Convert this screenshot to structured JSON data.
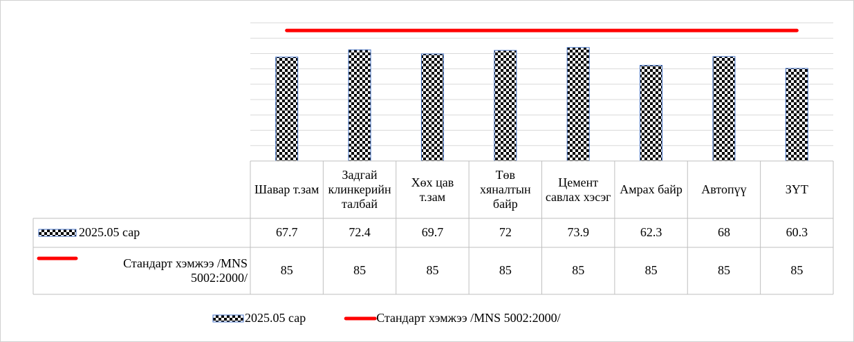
{
  "chart_data": {
    "type": "bar",
    "categories": [
      "Шавар т.зам",
      "Задгай клинкерийн талбай",
      "Хөх цав т.зам",
      "Төв хяналтын байр",
      "Цемент савлах хэсэг",
      "Амрах байр",
      "Автопүү",
      "ЗҮТ"
    ],
    "series": [
      {
        "name": "2025.05 сар",
        "type": "bar",
        "color": "#4472c4",
        "values": [
          67.7,
          72.4,
          69.7,
          72,
          73.9,
          62.3,
          68,
          60.3
        ]
      },
      {
        "name": "Стандарт хэмжээ /MNS 5002:2000/",
        "type": "line",
        "color": "#ff0000",
        "values": [
          85,
          85,
          85,
          85,
          85,
          85,
          85,
          85
        ]
      }
    ],
    "ylim": [
      0,
      90
    ],
    "yticks": [
      0,
      10,
      20,
      30,
      40,
      50,
      60,
      70,
      80,
      90
    ],
    "grid": true,
    "legend": "bottom"
  }
}
